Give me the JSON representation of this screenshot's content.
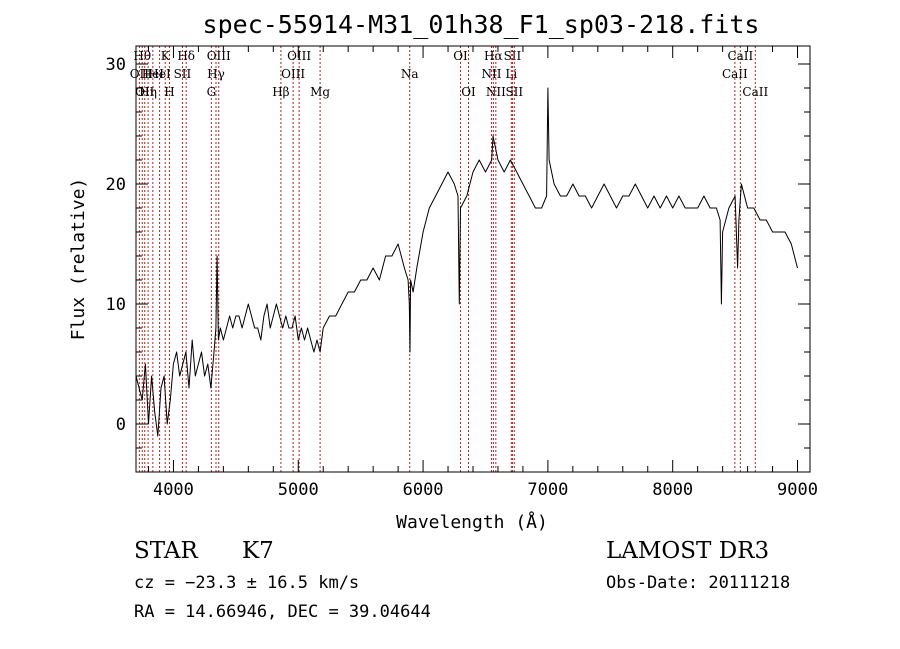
{
  "chart_data": {
    "type": "line",
    "title": "spec-55914-M31_01h38_F1_sp03-218.fits",
    "xlabel": "Wavelength (Å)",
    "ylabel": "Flux (relative)",
    "xlim": [
      3700,
      9100
    ],
    "ylim": [
      -4,
      31.5
    ],
    "x_ticks": [
      4000,
      5000,
      6000,
      7000,
      8000,
      9000
    ],
    "x_tick_labels": [
      "4000",
      "5000",
      "6000",
      "7000",
      "8000",
      "9000"
    ],
    "y_ticks": [
      0,
      10,
      20,
      30
    ],
    "y_tick_labels": [
      "0",
      "10",
      "20",
      "30"
    ],
    "grid": false,
    "series": [
      {
        "name": "flux",
        "x": [
          3700,
          3725,
          3750,
          3775,
          3800,
          3825,
          3850,
          3875,
          3900,
          3925,
          3950,
          3975,
          4000,
          4025,
          4050,
          4075,
          4100,
          4125,
          4150,
          4175,
          4200,
          4225,
          4250,
          4275,
          4300,
          4325,
          4340,
          4350,
          4360,
          4375,
          4400,
          4425,
          4450,
          4475,
          4500,
          4525,
          4550,
          4575,
          4600,
          4625,
          4650,
          4675,
          4700,
          4725,
          4750,
          4775,
          4800,
          4825,
          4850,
          4875,
          4900,
          4925,
          4950,
          4975,
          5000,
          5025,
          5050,
          5075,
          5100,
          5125,
          5150,
          5175,
          5200,
          5250,
          5300,
          5350,
          5400,
          5450,
          5500,
          5550,
          5600,
          5650,
          5700,
          5750,
          5800,
          5850,
          5880,
          5890,
          5895,
          5900,
          5920,
          5950,
          6000,
          6050,
          6100,
          6150,
          6200,
          6250,
          6280,
          6290,
          6300,
          6350,
          6400,
          6450,
          6500,
          6550,
          6560,
          6600,
          6650,
          6700,
          6750,
          6800,
          6850,
          6900,
          6950,
          6990,
          7000,
          7010,
          7050,
          7100,
          7150,
          7200,
          7250,
          7300,
          7350,
          7400,
          7450,
          7500,
          7550,
          7600,
          7650,
          7700,
          7750,
          7800,
          7850,
          7900,
          7950,
          8000,
          8050,
          8100,
          8150,
          8200,
          8250,
          8300,
          8350,
          8380,
          8390,
          8400,
          8450,
          8500,
          8520,
          8530,
          8550,
          8600,
          8650,
          8700,
          8750,
          8800,
          8850,
          8900,
          8950,
          9000
        ],
        "values": [
          4,
          3,
          2,
          5,
          0,
          4,
          1,
          -1,
          3,
          4,
          0,
          2,
          5,
          6,
          4,
          5,
          6,
          3,
          7,
          4,
          5,
          6,
          4,
          5,
          3,
          6,
          8,
          14,
          7,
          8,
          7,
          8,
          9,
          8,
          9,
          9,
          8,
          9,
          10,
          9,
          8,
          8,
          7,
          9,
          10,
          8,
          9,
          10,
          9,
          8,
          9,
          8,
          8,
          9,
          7,
          8,
          7,
          8,
          7,
          6,
          7,
          6,
          8,
          9,
          9,
          10,
          11,
          11,
          12,
          12,
          13,
          12,
          14,
          14,
          15,
          13,
          12,
          10,
          6,
          12,
          11,
          13,
          16,
          18,
          19,
          20,
          21,
          20,
          19,
          10,
          18,
          19,
          21,
          22,
          21,
          22,
          24,
          22,
          21,
          22,
          21,
          20,
          19,
          18,
          18,
          19,
          28,
          22,
          20,
          19,
          19,
          20,
          19,
          19,
          18,
          19,
          20,
          19,
          18,
          19,
          19,
          20,
          19,
          18,
          19,
          18,
          19,
          18,
          19,
          18,
          18,
          18,
          19,
          18,
          18,
          17,
          10,
          16,
          18,
          19,
          13,
          17,
          20,
          18,
          18,
          17,
          17,
          16,
          16,
          16,
          15,
          13
        ],
        "color": "#000000"
      }
    ],
    "line_markers": [
      {
        "wavelength": 3727,
        "label": "OII",
        "row": 1
      },
      {
        "wavelength": 3750,
        "label": "Hθ",
        "row": 0
      },
      {
        "wavelength": 3770,
        "label": "OII",
        "row": 2
      },
      {
        "wavelength": 3797,
        "label": "Hη",
        "row": 2
      },
      {
        "wavelength": 3835,
        "label": "HeI",
        "row": 1
      },
      {
        "wavelength": 3889,
        "label": "HeI",
        "row": 1
      },
      {
        "wavelength": 3934,
        "label": "K",
        "row": 0
      },
      {
        "wavelength": 3968,
        "label": "H",
        "row": 2
      },
      {
        "wavelength": 4072,
        "label": "SII",
        "row": 1
      },
      {
        "wavelength": 4102,
        "label": "Hδ",
        "row": 0
      },
      {
        "wavelength": 4304,
        "label": "G",
        "row": 2
      },
      {
        "wavelength": 4341,
        "label": "Hγ",
        "row": 1
      },
      {
        "wavelength": 4363,
        "label": "OIII",
        "row": 0
      },
      {
        "wavelength": 4861,
        "label": "Hβ",
        "row": 2
      },
      {
        "wavelength": 4959,
        "label": "OIII",
        "row": 1
      },
      {
        "wavelength": 5007,
        "label": "OIII",
        "row": 0
      },
      {
        "wavelength": 5175,
        "label": "Mg",
        "row": 2
      },
      {
        "wavelength": 5893,
        "label": "Na",
        "row": 1
      },
      {
        "wavelength": 6300,
        "label": "OI",
        "row": 0
      },
      {
        "wavelength": 6364,
        "label": "OI",
        "row": 2
      },
      {
        "wavelength": 6548,
        "label": "NII",
        "row": 1
      },
      {
        "wavelength": 6563,
        "label": "Hα",
        "row": 0
      },
      {
        "wavelength": 6583,
        "label": "NII",
        "row": 2
      },
      {
        "wavelength": 6707,
        "label": "Li",
        "row": 1
      },
      {
        "wavelength": 6716,
        "label": "SII",
        "row": 0
      },
      {
        "wavelength": 6731,
        "label": "SII",
        "row": 2
      },
      {
        "wavelength": 8498,
        "label": "CaII",
        "row": 1
      },
      {
        "wavelength": 8542,
        "label": "CaII",
        "row": 0
      },
      {
        "wavelength": 8662,
        "label": "CaII",
        "row": 2
      }
    ]
  },
  "info": {
    "class": "STAR",
    "subclass": "K7",
    "survey": "LAMOST DR3",
    "cz": "cz = −23.3 ± 16.5 km/s",
    "obs_date": "Obs-Date: 20111218",
    "coords": "RA =  14.66946, DEC =  39.04644"
  },
  "colors": {
    "line_marker": "#b22222",
    "spectrum": "#000000",
    "axes": "#000000"
  }
}
